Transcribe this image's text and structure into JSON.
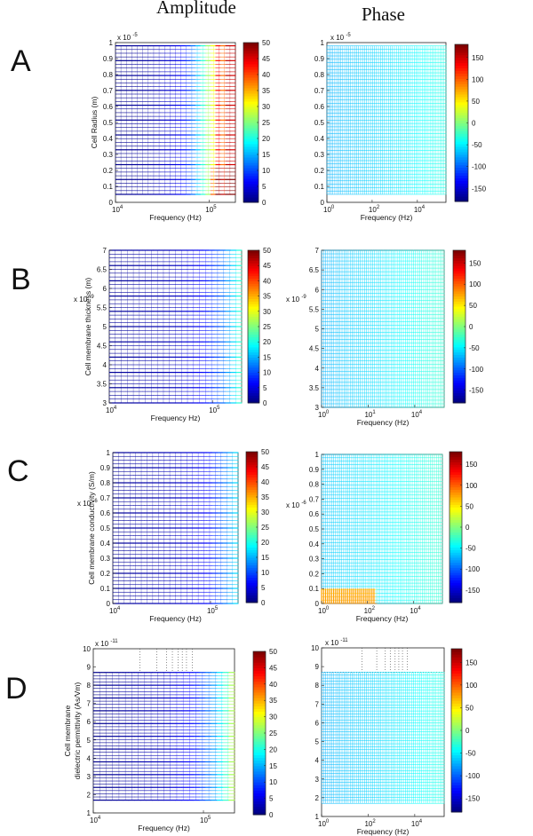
{
  "headers": {
    "amplitude": "Amplitude",
    "phase": "Phase"
  },
  "chart_data": [
    {
      "id": "A-amp",
      "type": "heatmap",
      "row_label": "A",
      "quantity": "amplitude",
      "ylabel": "Cell Radius (m)",
      "xlabel": "Frequency (Hz)",
      "y_exp": "x 10",
      "y_exp_pow": "-5",
      "y_ticks": [
        "0",
        "0.1",
        "0.2",
        "0.3",
        "0.4",
        "0.5",
        "0.6",
        "0.7",
        "0.8",
        "0.9",
        "1"
      ],
      "x_ticks": [
        {
          "base": "10",
          "pow": "4"
        },
        {
          "base": "10",
          "pow": "5"
        }
      ],
      "cbar_ticks": [
        "0",
        "5",
        "10",
        "15",
        "20",
        "25",
        "30",
        "35",
        "40",
        "45",
        "50"
      ],
      "grid_bottom_value": 0.05,
      "grid_top_value": 0.98,
      "color_stops": [
        [
          0,
          0.01
        ],
        [
          0.3,
          0.04
        ],
        [
          0.5,
          0.09
        ],
        [
          0.62,
          0.18
        ],
        [
          0.68,
          0.3
        ],
        [
          0.73,
          0.42
        ],
        [
          0.78,
          0.55
        ],
        [
          0.82,
          0.62
        ],
        [
          0.86,
          0.9
        ],
        [
          0.9,
          0.75
        ],
        [
          0.94,
          0.95
        ],
        [
          1,
          0.9
        ]
      ],
      "low_region_boost": 0.18
    },
    {
      "id": "A-phase",
      "type": "heatmap",
      "row_label": "A",
      "quantity": "phase",
      "ylabel": "",
      "xlabel": "Frequency (Hz)",
      "y_exp": "x 10",
      "y_exp_pow": "-5",
      "y_ticks": [
        "0",
        "0.1",
        "0.2",
        "0.3",
        "0.4",
        "0.5",
        "0.6",
        "0.7",
        "0.8",
        "0.9",
        "1"
      ],
      "x_ticks": [
        {
          "base": "10",
          "pow": "0"
        },
        {
          "base": "10",
          "pow": "2"
        },
        {
          "base": "10",
          "pow": "4"
        }
      ],
      "cbar_ticks": [
        "-150",
        "-100",
        "-50",
        "0",
        "50",
        "100",
        "150"
      ],
      "grid_bottom_value": 0.05,
      "grid_top_value": 0.98,
      "color_stops": [
        [
          0,
          0.3
        ],
        [
          0.5,
          0.34
        ],
        [
          1,
          0.4
        ]
      ]
    },
    {
      "id": "B-amp",
      "type": "heatmap",
      "row_label": "B",
      "quantity": "amplitude",
      "ylabel": "Cell membrane thickness (m)",
      "xlabel": "Frequency Hz)",
      "y_exp": "x 10",
      "y_exp_pow": "-9",
      "y_ticks": [
        "3",
        "3.5",
        "4",
        "4.5",
        "5",
        "5.5",
        "6",
        "6.5",
        "7"
      ],
      "x_ticks": [
        {
          "base": "10",
          "pow": "4"
        },
        {
          "base": "10",
          "pow": "5"
        }
      ],
      "cbar_ticks": [
        "0",
        "5",
        "10",
        "15",
        "20",
        "25",
        "30",
        "35",
        "40",
        "45",
        "50"
      ],
      "grid_bottom_value": 3,
      "grid_top_value": 7,
      "color_stops": [
        [
          0,
          0.02
        ],
        [
          0.5,
          0.06
        ],
        [
          0.7,
          0.12
        ],
        [
          0.85,
          0.22
        ],
        [
          0.93,
          0.32
        ],
        [
          1,
          0.45
        ]
      ]
    },
    {
      "id": "B-phase",
      "type": "heatmap",
      "row_label": "B",
      "quantity": "phase",
      "ylabel": "",
      "xlabel": "Frequency (Hz)",
      "y_exp": "x 10",
      "y_exp_pow": "-9",
      "y_ticks": [
        "3",
        "3.5",
        "4",
        "4.5",
        "5",
        "5.5",
        "6",
        "6.5",
        "7"
      ],
      "x_ticks": [
        {
          "base": "10",
          "pow": "0"
        },
        {
          "base": "10",
          "pow": "1"
        },
        {
          "base": "10",
          "pow": "4"
        }
      ],
      "cbar_ticks": [
        "-150",
        "-100",
        "-50",
        "0",
        "50",
        "100",
        "150"
      ],
      "grid_bottom_value": 3,
      "grid_top_value": 7,
      "color_stops": [
        [
          0,
          0.3
        ],
        [
          0.5,
          0.35
        ],
        [
          1,
          0.42
        ]
      ]
    },
    {
      "id": "C-amp",
      "type": "heatmap",
      "row_label": "C",
      "quantity": "amplitude",
      "ylabel": "Cell membrane conductivity (S/m)",
      "xlabel": "Frequency (Hz)",
      "y_exp": "x 10",
      "y_exp_pow": "-6",
      "y_ticks": [
        "0",
        "0.1",
        "0.2",
        "0.3",
        "0.4",
        "0.5",
        "0.6",
        "0.7",
        "0.8",
        "0.9",
        "1"
      ],
      "x_ticks": [
        {
          "base": "10",
          "pow": "4"
        },
        {
          "base": "10",
          "pow": "5"
        }
      ],
      "cbar_ticks": [
        "0",
        "5",
        "10",
        "15",
        "20",
        "25",
        "30",
        "35",
        "40",
        "45",
        "50"
      ],
      "grid_bottom_value": 0,
      "grid_top_value": 1,
      "color_stops": [
        [
          0,
          0.02
        ],
        [
          0.5,
          0.06
        ],
        [
          0.75,
          0.12
        ],
        [
          0.88,
          0.22
        ],
        [
          1,
          0.36
        ]
      ]
    },
    {
      "id": "C-phase",
      "type": "heatmap",
      "row_label": "C",
      "quantity": "phase",
      "ylabel": "",
      "xlabel": "Frequency (Hz)",
      "y_exp": "x 10",
      "y_exp_pow": "-6",
      "y_ticks": [
        "0",
        "0.1",
        "0.2",
        "0.3",
        "0.4",
        "0.5",
        "0.6",
        "0.7",
        "0.8",
        "0.9",
        "1"
      ],
      "x_ticks": [
        {
          "base": "10",
          "pow": "0"
        },
        {
          "base": "10",
          "pow": "2"
        },
        {
          "base": "10",
          "pow": "4"
        }
      ],
      "cbar_ticks": [
        "-150",
        "-100",
        "-50",
        "0",
        "50",
        "100",
        "150"
      ],
      "grid_bottom_value": 0,
      "grid_top_value": 1,
      "color_stops": [
        [
          0,
          0.32
        ],
        [
          0.5,
          0.36
        ],
        [
          1,
          0.42
        ]
      ],
      "hot_region": {
        "y_max": 0.1,
        "x_max": 0.45,
        "level": 0.72
      }
    },
    {
      "id": "D-amp",
      "type": "heatmap",
      "row_label": "D",
      "quantity": "amplitude",
      "ylabel": "Cell membrane dielectric permittivity (As/Vm)",
      "xlabel": "Frequency (Hz)",
      "y_exp": "x 10",
      "y_exp_pow": "-11",
      "y_ticks": [
        "1",
        "2",
        "3",
        "4",
        "5",
        "6",
        "7",
        "8",
        "9",
        "10"
      ],
      "x_ticks": [
        {
          "base": "10",
          "pow": "4"
        },
        {
          "base": "10",
          "pow": "5"
        }
      ],
      "cbar_ticks": [
        "0",
        "5",
        "10",
        "15",
        "20",
        "25",
        "30",
        "35",
        "40",
        "45",
        "50"
      ],
      "grid_bottom_value": 1.7,
      "grid_top_value": 8.7,
      "color_stops": [
        [
          0,
          0.01
        ],
        [
          0.5,
          0.06
        ],
        [
          0.72,
          0.14
        ],
        [
          0.86,
          0.28
        ],
        [
          0.95,
          0.45
        ],
        [
          1,
          0.6
        ]
      ]
    },
    {
      "id": "D-phase",
      "type": "heatmap",
      "row_label": "D",
      "quantity": "phase",
      "ylabel": "",
      "xlabel": "Frequency (Hz)",
      "y_exp": "x 10",
      "y_exp_pow": "-11",
      "y_ticks": [
        "1",
        "2",
        "3",
        "4",
        "5",
        "6",
        "7",
        "8",
        "9",
        "10"
      ],
      "x_ticks": [
        {
          "base": "10",
          "pow": "0"
        },
        {
          "base": "10",
          "pow": "2"
        },
        {
          "base": "10",
          "pow": "4"
        }
      ],
      "cbar_ticks": [
        "-150",
        "-100",
        "-50",
        "0",
        "50",
        "100",
        "150"
      ],
      "grid_bottom_value": 1.7,
      "grid_top_value": 8.7,
      "color_stops": [
        [
          0,
          0.3
        ],
        [
          0.5,
          0.34
        ],
        [
          1,
          0.4
        ]
      ]
    }
  ]
}
